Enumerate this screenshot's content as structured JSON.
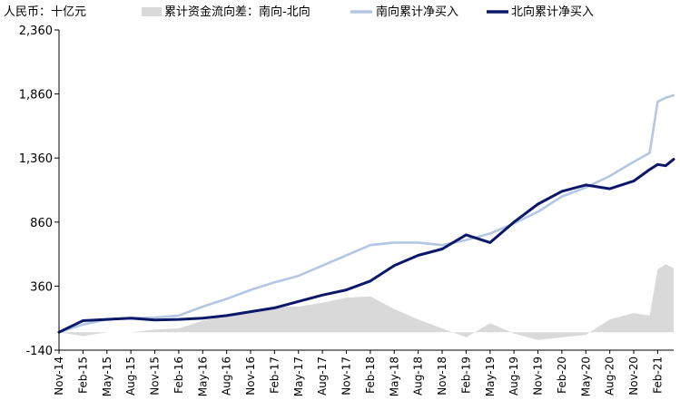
{
  "chart_data": {
    "type": "line",
    "unit_label": "人民币：十亿元",
    "legend": [
      {
        "name": "累计资金流向差：南向-北向",
        "color": "#d9d9d9",
        "kind": "area"
      },
      {
        "name": "南向累计净买入",
        "color": "#b4c7e2",
        "kind": "line"
      },
      {
        "name": "北向累计净买入",
        "color": "#0b1769",
        "kind": "line"
      }
    ],
    "ylim": [
      -140,
      2360
    ],
    "y_ticks": [
      {
        "value": 2360,
        "label": "2,360",
        "color": "#000000"
      },
      {
        "value": 1860,
        "label": "1,860",
        "color": "#000000"
      },
      {
        "value": 1360,
        "label": "1,360",
        "color": "#000000"
      },
      {
        "value": 860,
        "label": "860",
        "color": "#000000"
      },
      {
        "value": 360,
        "label": "360",
        "color": "#000000"
      },
      {
        "value": -140,
        "label": "-140",
        "color": "#c00000"
      }
    ],
    "x_range": [
      "2014-11",
      "2021-04"
    ],
    "x_ticks": [
      "Nov-14",
      "Feb-15",
      "May-15",
      "Aug-15",
      "Nov-15",
      "Feb-16",
      "May-16",
      "Aug-16",
      "Nov-16",
      "Feb-17",
      "May-17",
      "Aug-17",
      "Nov-17",
      "Feb-18",
      "May-18",
      "Aug-18",
      "Nov-18",
      "Feb-19",
      "May-19",
      "Aug-19",
      "Nov-19",
      "Feb-20",
      "May-20",
      "Aug-20",
      "Nov-20",
      "Feb-21"
    ],
    "series": [
      {
        "name": "南向累计净买入",
        "x": [
          "2014-11",
          "2015-02",
          "2015-05",
          "2015-08",
          "2015-11",
          "2016-02",
          "2016-05",
          "2016-08",
          "2016-11",
          "2017-02",
          "2017-05",
          "2017-08",
          "2017-11",
          "2018-02",
          "2018-05",
          "2018-08",
          "2018-11",
          "2019-02",
          "2019-05",
          "2019-08",
          "2019-11",
          "2020-02",
          "2020-05",
          "2020-08",
          "2020-11",
          "2021-01",
          "2021-02",
          "2021-03",
          "2021-04"
        ],
        "values": [
          0,
          60,
          100,
          110,
          115,
          130,
          200,
          260,
          330,
          390,
          440,
          520,
          600,
          680,
          700,
          700,
          680,
          720,
          770,
          850,
          940,
          1060,
          1130,
          1220,
          1330,
          1400,
          1800,
          1830,
          1850
        ]
      },
      {
        "name": "北向累计净买入",
        "x": [
          "2014-11",
          "2015-02",
          "2015-05",
          "2015-08",
          "2015-11",
          "2016-02",
          "2016-05",
          "2016-08",
          "2016-11",
          "2017-02",
          "2017-05",
          "2017-08",
          "2017-11",
          "2018-02",
          "2018-05",
          "2018-08",
          "2018-11",
          "2019-02",
          "2019-05",
          "2019-08",
          "2019-11",
          "2020-02",
          "2020-05",
          "2020-08",
          "2020-11",
          "2021-01",
          "2021-02",
          "2021-03",
          "2021-04"
        ],
        "values": [
          0,
          90,
          100,
          110,
          95,
          100,
          110,
          130,
          160,
          190,
          240,
          290,
          330,
          400,
          520,
          600,
          650,
          760,
          700,
          860,
          1000,
          1100,
          1150,
          1120,
          1180,
          1270,
          1310,
          1300,
          1350
        ]
      },
      {
        "name": "累计资金流向差：南向-北向",
        "x": [
          "2014-11",
          "2015-02",
          "2015-05",
          "2015-08",
          "2015-11",
          "2016-02",
          "2016-05",
          "2016-08",
          "2016-11",
          "2017-02",
          "2017-05",
          "2017-08",
          "2017-11",
          "2018-02",
          "2018-05",
          "2018-08",
          "2018-11",
          "2019-02",
          "2019-05",
          "2019-08",
          "2019-11",
          "2020-02",
          "2020-05",
          "2020-08",
          "2020-11",
          "2021-01",
          "2021-02",
          "2021-03",
          "2021-04"
        ],
        "values": [
          0,
          -30,
          0,
          0,
          20,
          30,
          90,
          130,
          170,
          200,
          200,
          230,
          270,
          280,
          180,
          100,
          30,
          -40,
          70,
          -10,
          -60,
          -40,
          -20,
          100,
          150,
          130,
          490,
          530,
          500
        ]
      }
    ]
  }
}
